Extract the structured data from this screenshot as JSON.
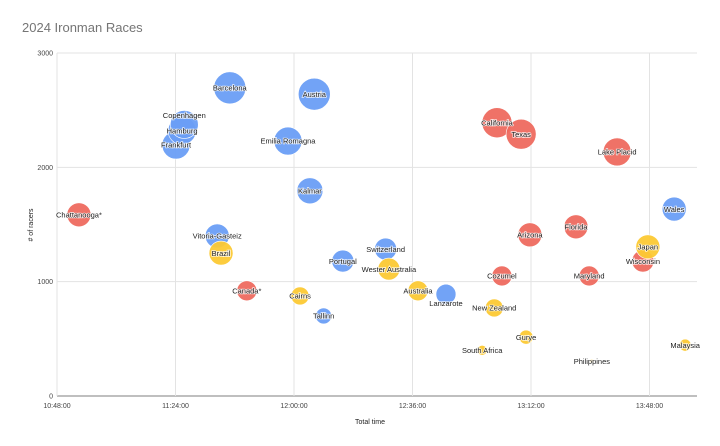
{
  "chart_data": {
    "type": "bubble",
    "title": "2024 Ironman Races",
    "xlabel": "Total time",
    "ylabel": "# of racers",
    "xlim": [
      "10:48:00",
      "14:02:00"
    ],
    "ylim": [
      0,
      3000
    ],
    "x_ticks": [
      "10:48:00",
      "11:24:00",
      "12:00:00",
      "12:36:00",
      "13:12:00",
      "13:48:00"
    ],
    "y_ticks": [
      "0",
      "1000",
      "2000",
      "3000"
    ],
    "grid": true,
    "legend": "none",
    "colors": {
      "blue": "#6a9ef5",
      "red": "#ee6a5f",
      "yellow": "#fcc934"
    },
    "points": [
      {
        "label": "Chattanooga*",
        "x": "10:54:40",
        "y": 1585,
        "size": 12,
        "color": "#ee6a5f"
      },
      {
        "label": "Frankfurt",
        "x": "11:24:10",
        "y": 2195,
        "size": 14,
        "color": "#6a9ef5"
      },
      {
        "label": "Hamburg",
        "x": "11:26:00",
        "y": 2320,
        "size": 14,
        "color": "#6a9ef5"
      },
      {
        "label": "Copenhagen",
        "x": "11:26:40",
        "y": 2375,
        "size": 14,
        "color": "#6a9ef5"
      },
      {
        "label": "Barcelona",
        "x": "11:40:30",
        "y": 2695,
        "size": 16,
        "color": "#6a9ef5"
      },
      {
        "label": "Austria",
        "x": "12:06:10",
        "y": 2640,
        "size": 16,
        "color": "#6a9ef5"
      },
      {
        "label": "Emilia Romagna",
        "x": "11:58:10",
        "y": 2230,
        "size": 14,
        "color": "#6a9ef5"
      },
      {
        "label": "Kalmar",
        "x": "12:04:50",
        "y": 1795,
        "size": 13,
        "color": "#6a9ef5"
      },
      {
        "label": "Vitoria-Gasteiz",
        "x": "11:36:40",
        "y": 1400,
        "size": 12,
        "color": "#6a9ef5"
      },
      {
        "label": "Brazil",
        "x": "11:37:50",
        "y": 1250,
        "size": 12,
        "color": "#fcc934"
      },
      {
        "label": "Canada*",
        "x": "11:45:40",
        "y": 920,
        "size": 10,
        "color": "#ee6a5f"
      },
      {
        "label": "Cairns",
        "x": "12:01:50",
        "y": 875,
        "size": 9,
        "color": "#fcc934"
      },
      {
        "label": "Tallinn",
        "x": "12:09:00",
        "y": 700,
        "size": 8,
        "color": "#6a9ef5"
      },
      {
        "label": "Portugal",
        "x": "12:14:50",
        "y": 1180,
        "size": 11,
        "color": "#6a9ef5"
      },
      {
        "label": "Switzerland",
        "x": "12:27:50",
        "y": 1285,
        "size": 11,
        "color": "#6a9ef5"
      },
      {
        "label": "Wester Australia",
        "x": "12:28:50",
        "y": 1110,
        "size": 11,
        "color": "#fcc934"
      },
      {
        "label": "Australia",
        "x": "12:37:40",
        "y": 920,
        "size": 10,
        "color": "#fcc934"
      },
      {
        "label": "Lanzarote",
        "x": "12:46:10",
        "y": 890,
        "size": 10,
        "color": "#6a9ef5"
      },
      {
        "label": "South Africa",
        "x": "12:57:10",
        "y": 400,
        "size": 5,
        "color": "#fcc934"
      },
      {
        "label": "New Zealand",
        "x": "13:00:50",
        "y": 770,
        "size": 9,
        "color": "#fcc934"
      },
      {
        "label": "California",
        "x": "13:01:40",
        "y": 2390,
        "size": 15,
        "color": "#ee6a5f"
      },
      {
        "label": "Cozumel",
        "x": "13:03:10",
        "y": 1050,
        "size": 10,
        "color": "#ee6a5f"
      },
      {
        "label": "Texas",
        "x": "13:09:00",
        "y": 2290,
        "size": 15,
        "color": "#ee6a5f"
      },
      {
        "label": "Gurye",
        "x": "13:10:30",
        "y": 515,
        "size": 7,
        "color": "#fcc934"
      },
      {
        "label": "Arizona",
        "x": "13:11:40",
        "y": 1410,
        "size": 12,
        "color": "#ee6a5f"
      },
      {
        "label": "Florida",
        "x": "13:25:40",
        "y": 1480,
        "size": 12,
        "color": "#ee6a5f"
      },
      {
        "label": "Maryland",
        "x": "13:29:40",
        "y": 1050,
        "size": 10,
        "color": "#ee6a5f"
      },
      {
        "label": "Philippines",
        "x": "13:30:30",
        "y": 305,
        "size": 2,
        "color": "#fcc934"
      },
      {
        "label": "Lake Placid",
        "x": "13:38:10",
        "y": 2135,
        "size": 14,
        "color": "#ee6a5f"
      },
      {
        "label": "Wisconsin",
        "x": "13:46:00",
        "y": 1180,
        "size": 11,
        "color": "#ee6a5f"
      },
      {
        "label": "Japan",
        "x": "13:47:30",
        "y": 1305,
        "size": 12,
        "color": "#fcc934"
      },
      {
        "label": "Wales",
        "x": "13:55:30",
        "y": 1635,
        "size": 12,
        "color": "#6a9ef5"
      },
      {
        "label": "Malaysia",
        "x": "13:58:50",
        "y": 445,
        "size": 6,
        "color": "#fcc934"
      }
    ]
  }
}
